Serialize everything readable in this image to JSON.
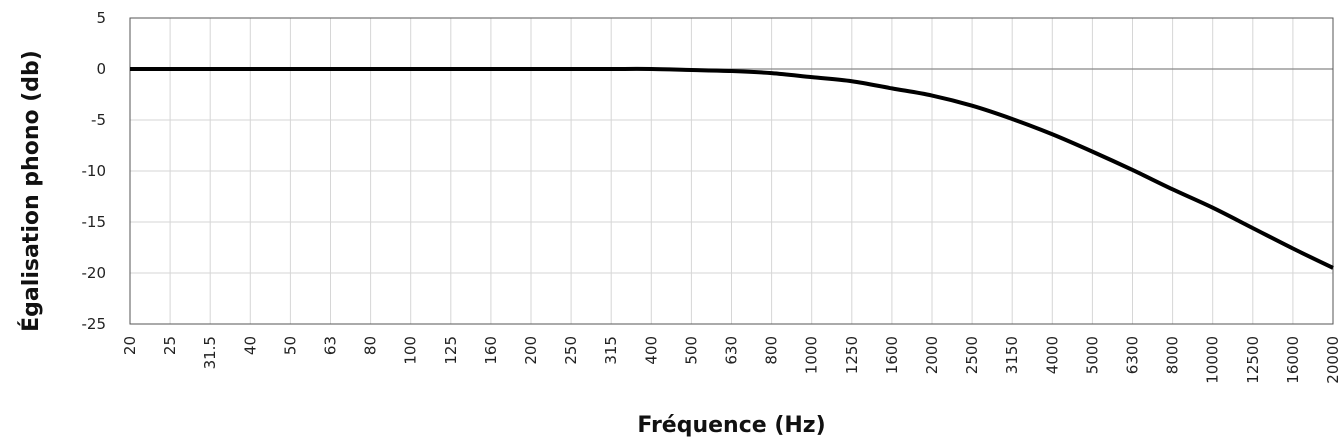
{
  "chart_data": {
    "type": "line",
    "xlabel": "Fréquence (Hz)",
    "ylabel": "Égalisation phono (db)",
    "x_scale": "categorical",
    "categories": [
      "20",
      "25",
      "31.5",
      "40",
      "50",
      "63",
      "80",
      "100",
      "125",
      "160",
      "200",
      "250",
      "315",
      "400",
      "500",
      "630",
      "800",
      "1000",
      "1250",
      "1600",
      "2000",
      "2500",
      "3150",
      "4000",
      "5000",
      "6300",
      "8000",
      "10000",
      "12500",
      "16000",
      "20000"
    ],
    "y_ticks": [
      "5",
      "0",
      "-5",
      "-10",
      "-15",
      "-20",
      "-25"
    ],
    "ylim": [
      -25,
      5
    ],
    "grid": true,
    "colors": {
      "line": "#000000",
      "grid": "#d6d6d6",
      "zero_line": "#888888",
      "frame": "#555555"
    },
    "series": [
      {
        "values": [
          0,
          0,
          0,
          0,
          0,
          0,
          0,
          0,
          0,
          0,
          0,
          0,
          0,
          0,
          -0.1,
          -0.2,
          -0.4,
          -0.8,
          -1.2,
          -1.9,
          -2.6,
          -3.6,
          -4.9,
          -6.4,
          -8.1,
          -9.9,
          -11.8,
          -13.6,
          -15.6,
          -17.6,
          -19.5
        ]
      }
    ]
  }
}
